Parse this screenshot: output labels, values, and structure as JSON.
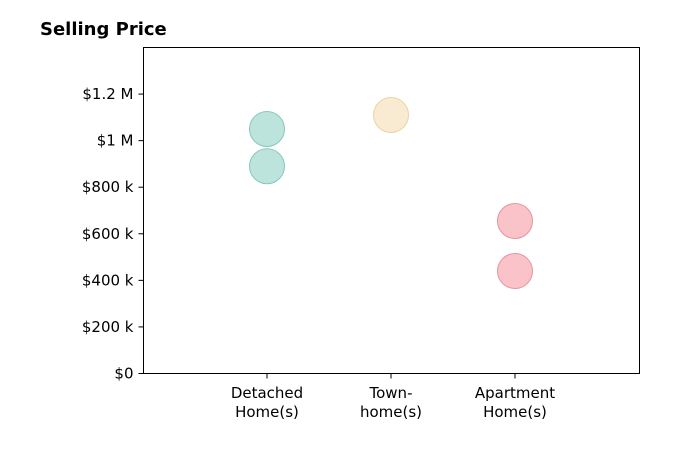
{
  "chart_data": {
    "type": "scatter",
    "title": "Selling Price",
    "xlabel": "",
    "ylabel": "",
    "categories": [
      [
        "Detached",
        "Home(s)"
      ],
      [
        "Town-",
        "home(s)"
      ],
      [
        "Apartment",
        "Home(s)"
      ]
    ],
    "ylim": [
      0,
      1400000
    ],
    "yticks": [
      {
        "value": 0,
        "label": "$0"
      },
      {
        "value": 200000,
        "label": "$200 k"
      },
      {
        "value": 400000,
        "label": "$400 k"
      },
      {
        "value": 600000,
        "label": "$600 k"
      },
      {
        "value": 800000,
        "label": "$800 k"
      },
      {
        "value": 1000000,
        "label": "$1 M"
      },
      {
        "value": 1200000,
        "label": "$1.2 M"
      }
    ],
    "grid": false,
    "legend": "none",
    "series": [
      {
        "category_index": 0,
        "color": "#9fd8cf",
        "stroke": "#86c8bd",
        "values": [
          1050000,
          890000
        ]
      },
      {
        "category_index": 1,
        "color": "#f7e3bf",
        "stroke": "#ecd3a4",
        "values": [
          1110000
        ]
      },
      {
        "category_index": 2,
        "color": "#f6a9b2",
        "stroke": "#e8939d",
        "values": [
          655000,
          440000
        ]
      }
    ]
  }
}
